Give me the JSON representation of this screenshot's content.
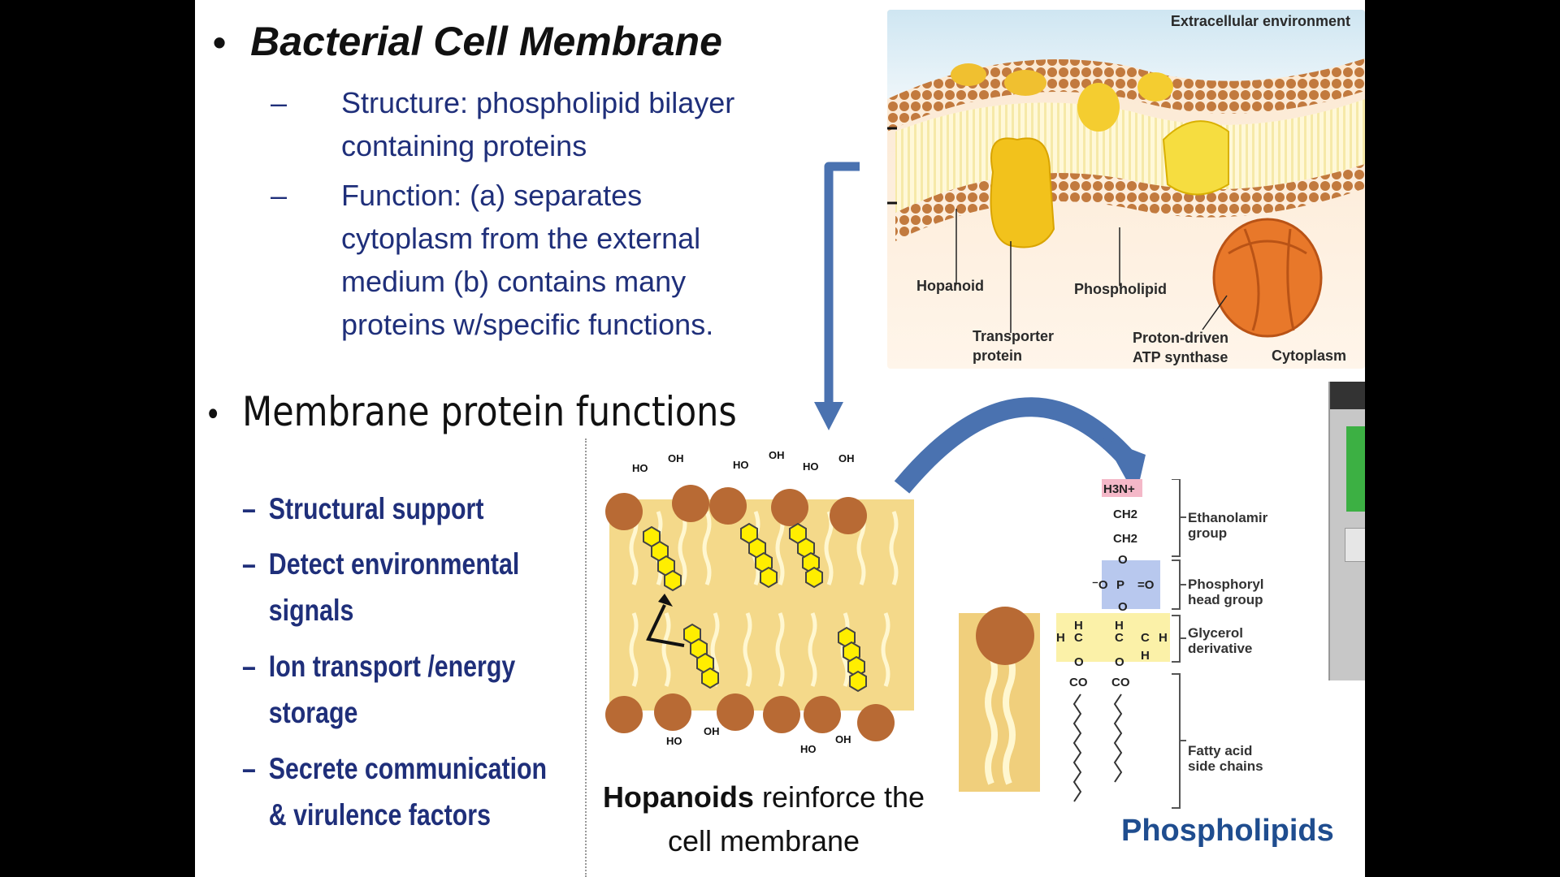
{
  "slide": {
    "title": "Bacterial Cell Membrane",
    "bullet_char": "•",
    "dash_char": "–",
    "structure": "Structure:  phospholipid bilayer containing proteins",
    "function": "Function:  (a) separates cytoplasm from the external medium (b) contains many proteins w/specific functions.",
    "membrane_protein_title": "Membrane protein functions",
    "protein_functions": [
      "Structural support",
      "Detect environmental signals",
      "Ion transport /energy storage",
      "Secrete communication & virulence factors"
    ]
  },
  "membrane_figure": {
    "extracellular": "Extracellular environment",
    "hopanoid": "Hopanoid",
    "phospholipid": "Phospholipid",
    "transporter_line1": "Transporter",
    "transporter_line2": "protein",
    "atp_line1": "Proton-driven",
    "atp_line2": "ATP synthase",
    "cytoplasm": "Cytoplasm"
  },
  "hopanoid_figure": {
    "caption_bold": "Hopanoids",
    "caption_rest": " reinforce the cell membrane",
    "oh_labels": [
      "HO",
      "OH"
    ]
  },
  "phospholipid_figure": {
    "caption": "Phospholipids",
    "h3n": "H3N+",
    "ch2": "CH2",
    "ethanolamine_line1": "Ethanolamir",
    "ethanolamine_line2": "group",
    "phosphoryl_line1": "Phosphoryl",
    "phosphoryl_line2": "head group",
    "glycerol_line1": "Glycerol",
    "glycerol_line2": "derivative",
    "fatty_line1": "Fatty acid",
    "fatty_line2": "side chains"
  },
  "colors": {
    "navy_text": "#1f2f7a",
    "arrow_blue": "#4a72b0",
    "lipid_head": "#c0703a",
    "membrane_yellow": "#f3d66a",
    "hopanoid_yellow": "#ffee00"
  }
}
